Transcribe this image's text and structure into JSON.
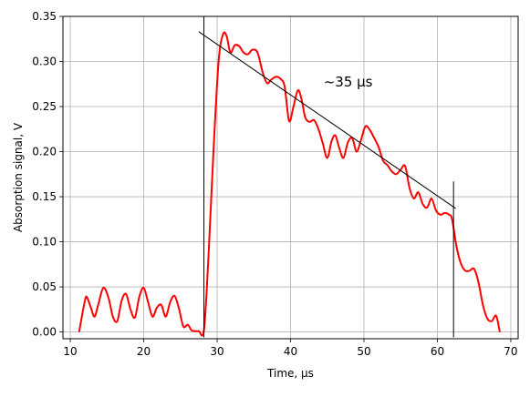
{
  "chart_data": {
    "type": "line",
    "title": "",
    "xlabel": "Time, μs",
    "ylabel": "Absorption signal, V",
    "xlim": [
      9.0,
      71.0
    ],
    "ylim": [
      -0.0075,
      0.35
    ],
    "xticks": [
      10,
      20,
      30,
      40,
      50,
      60,
      70
    ],
    "yticks": [
      0.0,
      0.05,
      0.1,
      0.15,
      0.2,
      0.25,
      0.3,
      0.35
    ],
    "xtick_labels": [
      "10",
      "20",
      "30",
      "40",
      "50",
      "60",
      "70"
    ],
    "ytick_labels": [
      "0.00",
      "0.05",
      "0.10",
      "0.15",
      "0.20",
      "0.25",
      "0.30",
      "0.35"
    ],
    "grid": true,
    "series": [
      {
        "color": "#ff0000",
        "x": [
          11.2,
          12.0,
          12.3,
          12.8,
          13.3,
          13.8,
          14.5,
          15.2,
          15.8,
          16.4,
          17.0,
          17.6,
          18.2,
          18.8,
          19.4,
          20.0,
          20.6,
          21.2,
          21.8,
          22.4,
          23.0,
          23.6,
          24.2,
          24.8,
          25.4,
          26.0,
          26.5,
          27.0,
          27.5,
          28.2,
          28.8,
          29.5,
          30.2,
          30.8,
          31.3,
          31.8,
          32.4,
          33.0,
          33.6,
          34.2,
          34.8,
          35.5,
          36.2,
          36.8,
          37.4,
          38.0,
          38.6,
          39.2,
          39.8,
          40.4,
          41.0,
          41.5,
          42.0,
          42.6,
          43.2,
          43.8,
          44.4,
          45.0,
          45.6,
          46.1,
          46.6,
          47.2,
          47.8,
          48.4,
          49.0,
          49.6,
          50.2,
          50.8,
          51.4,
          52.0,
          52.6,
          53.2,
          53.8,
          54.4,
          55.0,
          55.6,
          56.2,
          56.8,
          57.4,
          58.0,
          58.6,
          59.2,
          59.8,
          60.4,
          61.0,
          61.6,
          62.0,
          62.6,
          63.2,
          63.8,
          64.4,
          65.0,
          65.6,
          66.2,
          66.8,
          67.4,
          68.0,
          68.5
        ],
        "y": [
          0.0,
          0.035,
          0.038,
          0.027,
          0.017,
          0.03,
          0.049,
          0.038,
          0.017,
          0.012,
          0.035,
          0.042,
          0.025,
          0.016,
          0.039,
          0.049,
          0.033,
          0.017,
          0.027,
          0.03,
          0.017,
          0.033,
          0.04,
          0.026,
          0.006,
          0.008,
          0.002,
          0.001,
          0.001,
          0.002,
          0.08,
          0.2,
          0.3,
          0.33,
          0.328,
          0.31,
          0.318,
          0.317,
          0.31,
          0.308,
          0.313,
          0.31,
          0.288,
          0.276,
          0.28,
          0.283,
          0.281,
          0.272,
          0.234,
          0.25,
          0.268,
          0.258,
          0.238,
          0.233,
          0.235,
          0.225,
          0.209,
          0.193,
          0.212,
          0.218,
          0.205,
          0.193,
          0.21,
          0.215,
          0.2,
          0.213,
          0.228,
          0.224,
          0.215,
          0.205,
          0.19,
          0.185,
          0.178,
          0.175,
          0.18,
          0.184,
          0.16,
          0.148,
          0.155,
          0.142,
          0.138,
          0.148,
          0.135,
          0.13,
          0.132,
          0.13,
          0.125,
          0.095,
          0.076,
          0.068,
          0.068,
          0.07,
          0.055,
          0.03,
          0.015,
          0.012,
          0.018,
          0.0
        ]
      }
    ],
    "annotations": [
      {
        "text": "~35 μs",
        "x": 44.5,
        "y": 0.272
      }
    ],
    "markers": {
      "vertical_lines": [
        {
          "x": 28.2,
          "y": [
            -0.006,
            0.35
          ]
        },
        {
          "x": 62.2,
          "y": [
            -0.006,
            0.167
          ]
        }
      ],
      "trend_line": {
        "x": [
          27.5,
          62.5
        ],
        "y": [
          0.333,
          0.137
        ]
      }
    }
  }
}
